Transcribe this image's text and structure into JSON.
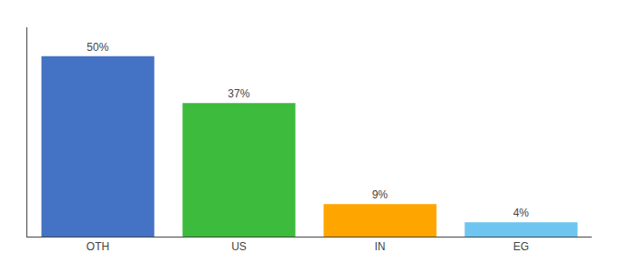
{
  "chart_data": {
    "type": "bar",
    "categories": [
      "OTH",
      "US",
      "IN",
      "EG"
    ],
    "values": [
      50,
      37,
      9,
      4
    ],
    "value_labels": [
      "50%",
      "37%",
      "9%",
      "4%"
    ],
    "colors": [
      "#4472C4",
      "#3DBB3D",
      "#FFA500",
      "#6EC6F0"
    ],
    "ylim": [
      0,
      58
    ],
    "data_labels": true,
    "tick_labels": "x",
    "grid": false
  }
}
